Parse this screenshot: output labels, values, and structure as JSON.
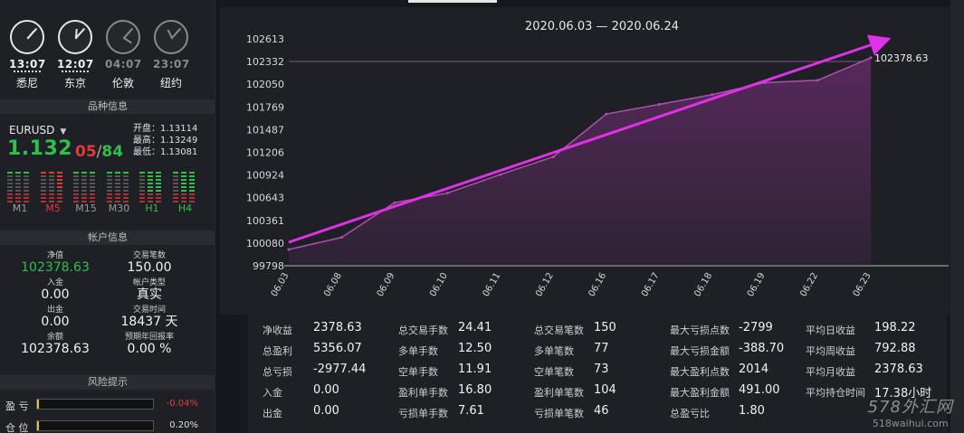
{
  "clocks": [
    {
      "city": "悉尼",
      "time": "13:07",
      "active": true,
      "hour_angle": 40,
      "min_angle": 42
    },
    {
      "city": "东京",
      "time": "12:07",
      "active": true,
      "hour_angle": 4,
      "min_angle": 42
    },
    {
      "city": "伦敦",
      "time": "04:07",
      "active": false,
      "hour_angle": 124,
      "min_angle": 42
    },
    {
      "city": "纽约",
      "time": "23:07",
      "active": false,
      "hour_angle": 334,
      "min_angle": 42
    }
  ],
  "instrument": {
    "section_title": "品种信息",
    "symbol": "EURUSD",
    "price_main": "1.132",
    "pips_a": "05",
    "pips_sep": "/",
    "pips_b": "84",
    "open_label": "开盘：",
    "open": "1.13114",
    "high_label": "最高：",
    "high": "1.13249",
    "low_label": "最低：",
    "low": "1.13081",
    "timeframes": [
      {
        "label": "M1",
        "highlight": "none"
      },
      {
        "label": "M5",
        "highlight": "red"
      },
      {
        "label": "M15",
        "highlight": "none"
      },
      {
        "label": "M30",
        "highlight": "none"
      },
      {
        "label": "H1",
        "highlight": "green"
      },
      {
        "label": "H4",
        "highlight": "green"
      }
    ]
  },
  "account": {
    "section_title": "帐户信息",
    "equity_label": "净值",
    "equity": "102378.63",
    "trades_label": "交易笔数",
    "trades": "150.00",
    "deposit_label": "入金",
    "deposit": "0.00",
    "type_label": "帐户类型",
    "type": "真实",
    "withdraw_label": "出金",
    "withdraw": "0.00",
    "time_label": "交易时间",
    "time": "18437 天",
    "balance_label": "余额",
    "balance": "102378.63",
    "annual_label": "预期年回报率",
    "annual": "0.00 %"
  },
  "risk": {
    "section_title": "风险提示",
    "profit_label": "盈 亏",
    "profit_value": "-0.04%",
    "position_label": "仓 位",
    "position_value": "0.20%"
  },
  "chart_data": {
    "type": "area",
    "title": "2020.06.03 — 2020.06.24",
    "categories": [
      "06.03",
      "06.08",
      "06.09",
      "06.10",
      "06.11",
      "06.12",
      "06.16",
      "06.17",
      "06.18",
      "06.19",
      "06.22",
      "06.23"
    ],
    "values": [
      100000,
      100150,
      100580,
      100700,
      100930,
      101150,
      101680,
      101800,
      101920,
      102070,
      102100,
      102378.63
    ],
    "yticks": [
      99798,
      100080,
      100361,
      100643,
      100924,
      101206,
      101487,
      101769,
      102050,
      102332,
      102613
    ],
    "ylim": [
      99798,
      102613
    ],
    "last_label": "102378.63",
    "reference_line": 102378.63,
    "trend_arrow": true,
    "line_color": "#b04fb0",
    "fill_color": "#5a2a5e",
    "arrow_color": "#e030e8"
  },
  "stats": [
    [
      {
        "k": "净收益",
        "v": "2378.63"
      },
      {
        "k": "总盈利",
        "v": "5356.07"
      },
      {
        "k": "总亏损",
        "v": "-2977.44"
      },
      {
        "k": "入金",
        "v": "0.00"
      },
      {
        "k": "出金",
        "v": "0.00"
      }
    ],
    [
      {
        "k": "总交易手数",
        "v": "24.41"
      },
      {
        "k": "多单手数",
        "v": "12.50"
      },
      {
        "k": "空单手数",
        "v": "11.91"
      },
      {
        "k": "盈利单手数",
        "v": "16.80"
      },
      {
        "k": "亏损单手数",
        "v": "7.61"
      }
    ],
    [
      {
        "k": "总交易笔数",
        "v": "150"
      },
      {
        "k": "多单笔数",
        "v": "77"
      },
      {
        "k": "空单笔数",
        "v": "73"
      },
      {
        "k": "盈利单笔数",
        "v": "104"
      },
      {
        "k": "亏损单笔数",
        "v": "46"
      }
    ],
    [
      {
        "k": "最大亏损点数",
        "v": "-2799"
      },
      {
        "k": "最大亏损金额",
        "v": "-388.70"
      },
      {
        "k": "最大盈利点数",
        "v": "2014"
      },
      {
        "k": "最大盈利金额",
        "v": "491.00"
      },
      {
        "k": "总盈亏比",
        "v": "1.80"
      }
    ],
    [
      {
        "k": "平均日收益",
        "v": "198.22"
      },
      {
        "k": "平均周收益",
        "v": "792.88"
      },
      {
        "k": "平均月收益",
        "v": "2378.63"
      },
      {
        "k": "平均持仓时间",
        "v": "17.38小时"
      }
    ]
  ],
  "watermark": {
    "line1": "578外汇网",
    "line2": "518waihui.com"
  }
}
